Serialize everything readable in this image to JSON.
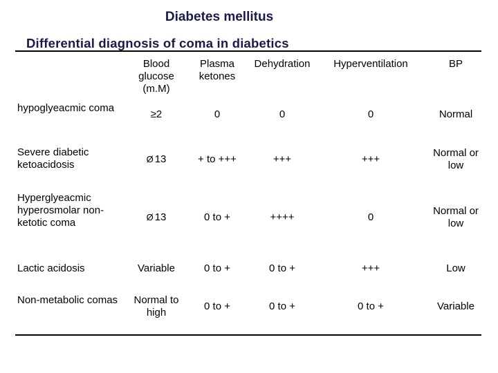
{
  "header": {
    "title": "Diabetes mellitus",
    "subtitle": "Differential diagnosis of coma in diabetics"
  },
  "table": {
    "columns": {
      "blood_glucose": "Blood glucose (m.M)",
      "plasma_ketones": "Plasma ketones",
      "dehydration": "Dehydration",
      "hyperventilation": "Hyperventilation",
      "bp": "BP"
    },
    "rows": [
      {
        "label": "hypoglyeacmic coma",
        "blood_glucose": "≥2",
        "plasma_ketones": "0",
        "dehydration": "0",
        "hyperventilation": "0",
        "bp": "Normal"
      },
      {
        "label": "Severe diabetic ketoacidosis",
        "glucose_arrow": "Ø",
        "blood_glucose": "13",
        "plasma_ketones": "+ to +++",
        "dehydration": "+++",
        "hyperventilation": "+++",
        "bp": "Normal or low"
      },
      {
        "label": "Hyperglyeacmic hyperosmolar non-ketotic coma",
        "glucose_arrow": "Ø",
        "blood_glucose": "13",
        "plasma_ketones": "0 to +",
        "dehydration": "++++",
        "hyperventilation": "0",
        "bp": "Normal or low"
      },
      {
        "label": "Lactic acidosis",
        "blood_glucose": "Variable",
        "plasma_ketones": "0 to +",
        "dehydration": "0 to +",
        "hyperventilation": "+++",
        "bp": "Low"
      },
      {
        "label": "Non-metabolic comas",
        "blood_glucose": "Normal to high",
        "plasma_ketones": "0 to +",
        "dehydration": "0 to +",
        "hyperventilation": "0 to +",
        "bp": "Variable"
      }
    ]
  }
}
